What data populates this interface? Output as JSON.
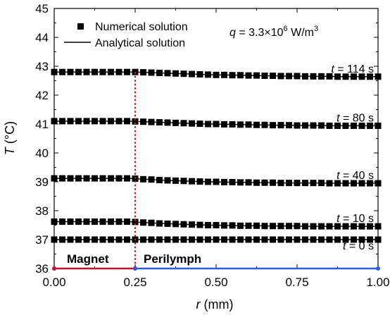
{
  "chart_data": {
    "type": "line",
    "xlabel": {
      "symbol": "r",
      "unit": " (mm)"
    },
    "ylabel": {
      "symbol": "T",
      "unit": " (°C)"
    },
    "xlim": [
      0.0,
      1.0
    ],
    "ylim": [
      36,
      45
    ],
    "xticks": [
      "0.00",
      "0.25",
      "0.50",
      "0.75",
      "1.00"
    ],
    "yticks": [
      "36",
      "37",
      "38",
      "39",
      "40",
      "41",
      "42",
      "43",
      "44",
      "45"
    ],
    "annotation": {
      "prefix": "q",
      "text": " = 3.3×10",
      "exp": "6",
      "unit": " W/m",
      "unit_exp": "3"
    },
    "legend": {
      "position": "top-left",
      "entries": [
        {
          "label": "Numerical solution",
          "marker": "square"
        },
        {
          "label": "Analytical solution",
          "marker": "line"
        }
      ]
    },
    "interface": {
      "x": 0.25,
      "color": "#c8102e",
      "style": "dotted"
    },
    "regions": [
      {
        "label": "Magnet",
        "x_start": 0.0,
        "x_end": 0.25,
        "color": "#c8102e"
      },
      {
        "label": "Perilymph",
        "x_start": 0.25,
        "x_end": 1.0,
        "color": "#2b5de0"
      }
    ],
    "x": [
      0.0,
      0.025,
      0.05,
      0.075,
      0.1,
      0.125,
      0.15,
      0.175,
      0.2,
      0.225,
      0.25,
      0.275,
      0.3,
      0.325,
      0.35,
      0.375,
      0.4,
      0.425,
      0.45,
      0.475,
      0.5,
      0.525,
      0.55,
      0.575,
      0.6,
      0.625,
      0.65,
      0.675,
      0.7,
      0.725,
      0.75,
      0.775,
      0.8,
      0.825,
      0.85,
      0.875,
      0.9,
      0.925,
      0.95,
      0.975,
      1.0
    ],
    "series": [
      {
        "name": "t = 114 s",
        "label": {
          "symbol": "t",
          "text": " = 114 s"
        },
        "values": [
          42.8,
          42.8,
          42.8,
          42.8,
          42.8,
          42.8,
          42.8,
          42.8,
          42.8,
          42.8,
          42.8,
          42.79,
          42.78,
          42.77,
          42.76,
          42.75,
          42.74,
          42.73,
          42.72,
          42.71,
          42.7,
          42.7,
          42.69,
          42.69,
          42.68,
          42.68,
          42.67,
          42.67,
          42.66,
          42.66,
          42.66,
          42.65,
          42.65,
          42.65,
          42.65,
          42.64,
          42.64,
          42.64,
          42.64,
          42.64,
          42.64
        ]
      },
      {
        "name": "t = 80 s",
        "label": {
          "symbol": "t",
          "text": " = 80 s"
        },
        "values": [
          41.1,
          41.1,
          41.1,
          41.1,
          41.1,
          41.1,
          41.1,
          41.1,
          41.1,
          41.1,
          41.09,
          41.08,
          41.07,
          41.06,
          41.05,
          41.04,
          41.03,
          41.02,
          41.01,
          41.0,
          41.0,
          40.99,
          40.99,
          40.98,
          40.98,
          40.97,
          40.97,
          40.96,
          40.96,
          40.96,
          40.95,
          40.95,
          40.95,
          40.95,
          40.94,
          40.94,
          40.94,
          40.94,
          40.94,
          40.94,
          40.94
        ]
      },
      {
        "name": "t = 40 s",
        "label": {
          "symbol": "t",
          "text": " = 40 s"
        },
        "values": [
          39.12,
          39.12,
          39.12,
          39.12,
          39.12,
          39.12,
          39.12,
          39.12,
          39.12,
          39.12,
          39.11,
          39.09,
          39.08,
          39.06,
          39.05,
          39.04,
          39.03,
          39.02,
          39.01,
          39.0,
          39.0,
          38.99,
          38.99,
          38.98,
          38.98,
          38.97,
          38.97,
          38.97,
          38.96,
          38.96,
          38.96,
          38.96,
          38.96,
          38.96,
          38.95,
          38.95,
          38.95,
          38.95,
          38.95,
          38.95,
          38.95
        ]
      },
      {
        "name": "t = 10 s",
        "label": {
          "symbol": "t",
          "text": " = 10 s"
        },
        "values": [
          37.62,
          37.62,
          37.62,
          37.62,
          37.62,
          37.62,
          37.62,
          37.62,
          37.62,
          37.62,
          37.61,
          37.59,
          37.58,
          37.56,
          37.55,
          37.54,
          37.53,
          37.52,
          37.51,
          37.5,
          37.5,
          37.49,
          37.49,
          37.48,
          37.48,
          37.48,
          37.47,
          37.47,
          37.47,
          37.47,
          37.47,
          37.46,
          37.46,
          37.46,
          37.46,
          37.46,
          37.46,
          37.46,
          37.46,
          37.46,
          37.46
        ]
      },
      {
        "name": "t = 0 s",
        "label": {
          "symbol": "t",
          "text": " = 0 s"
        },
        "values": [
          37.0,
          37.0,
          37.0,
          37.0,
          37.0,
          37.0,
          37.0,
          37.0,
          37.0,
          37.0,
          37.0,
          37.0,
          37.0,
          37.0,
          37.0,
          37.0,
          37.0,
          37.0,
          37.0,
          37.0,
          37.0,
          37.0,
          37.0,
          37.0,
          37.0,
          37.0,
          37.0,
          37.0,
          37.0,
          37.0,
          37.0,
          37.0,
          37.0,
          37.0,
          37.0,
          37.0,
          37.0,
          37.0,
          37.0,
          37.0,
          37.0
        ]
      }
    ]
  }
}
